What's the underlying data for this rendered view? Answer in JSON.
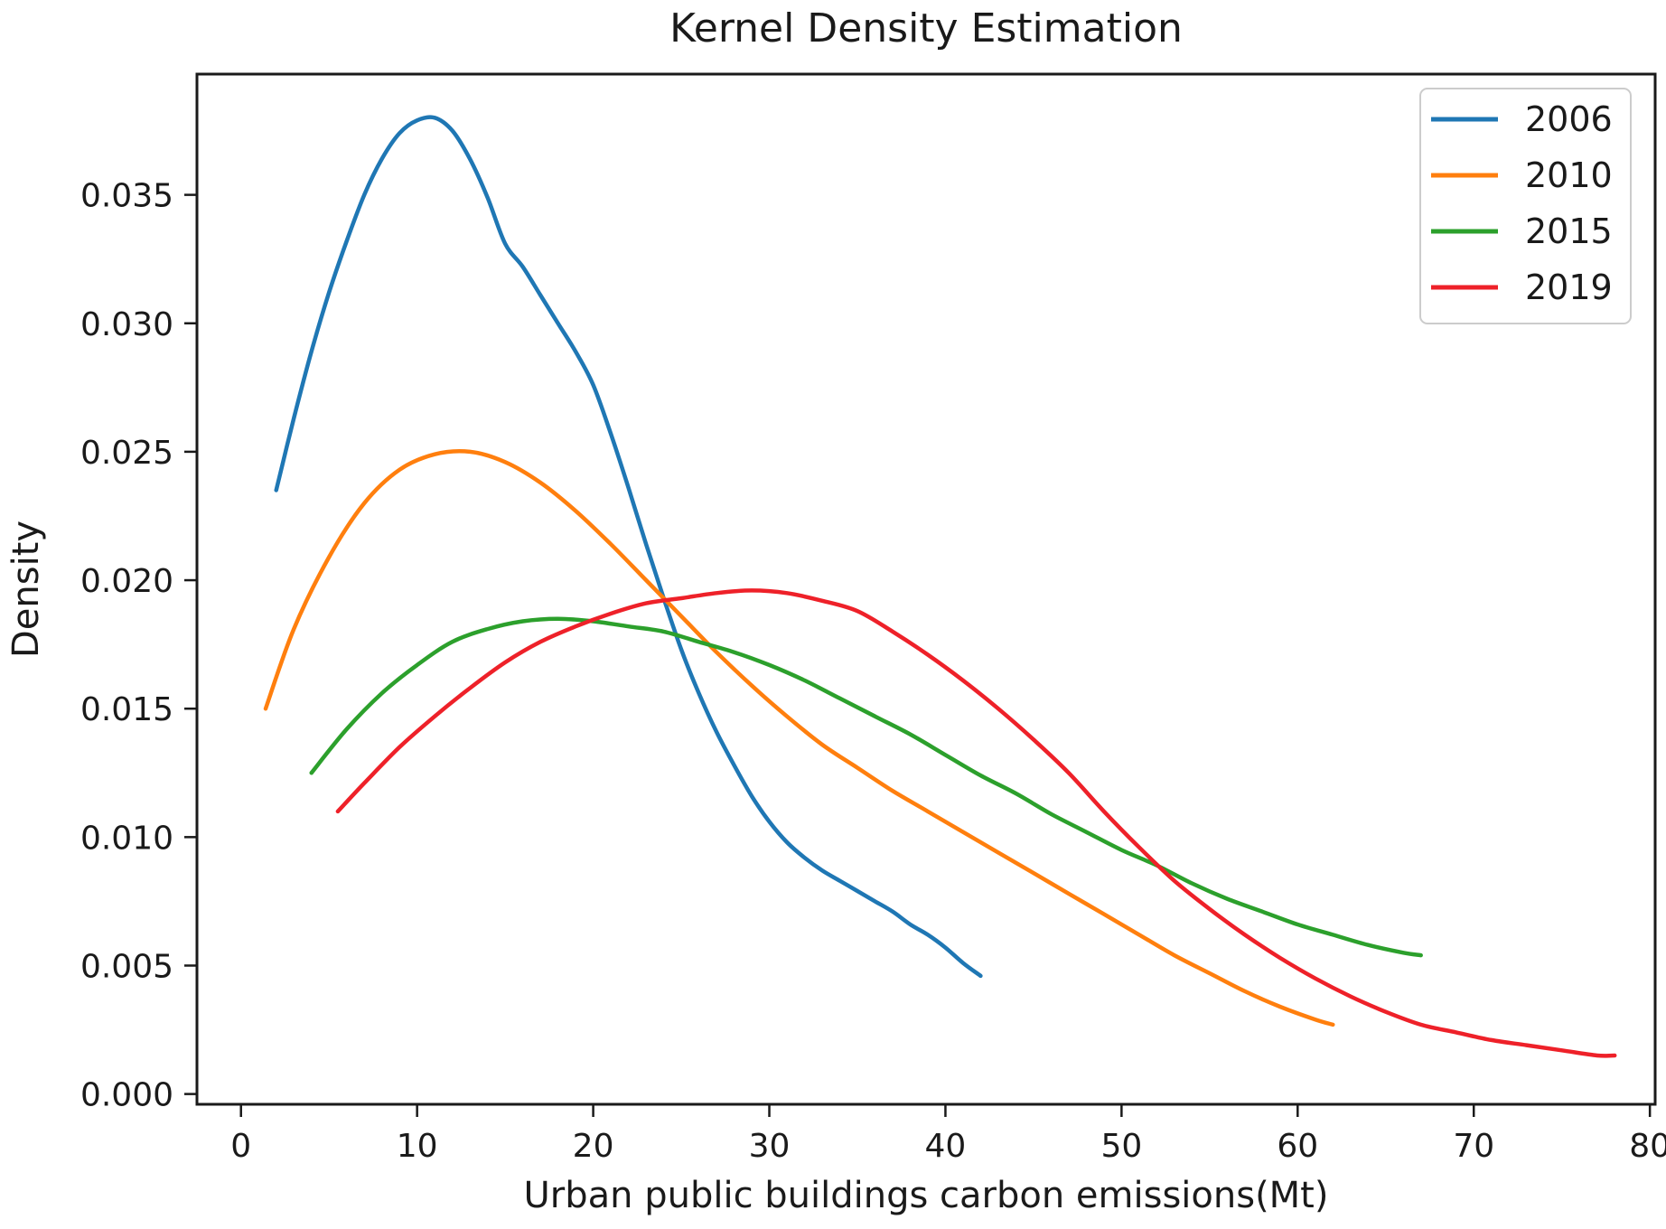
{
  "figure": {
    "title": "Kernel Density Estimation"
  },
  "x_axis": {
    "label": "Urban public buildings carbon emissions(Mt)",
    "tick_labels": [
      "0",
      "10",
      "20",
      "30",
      "40",
      "50",
      "60",
      "70",
      "80"
    ],
    "tick_values": [
      0,
      10,
      20,
      30,
      40,
      50,
      60,
      70,
      80
    ]
  },
  "y_axis": {
    "label": "Density",
    "tick_labels": [
      "0.000",
      "0.005",
      "0.010",
      "0.015",
      "0.020",
      "0.025",
      "0.030",
      "0.035"
    ],
    "tick_values": [
      0.0,
      0.005,
      0.01,
      0.015,
      0.02,
      0.025,
      0.03,
      0.035
    ]
  },
  "legend": {
    "position": "upper right",
    "entries": [
      {
        "label": "2006",
        "color": "#1f77b4"
      },
      {
        "label": "2010",
        "color": "#ff7f0e"
      },
      {
        "label": "2015",
        "color": "#2ca02c"
      },
      {
        "label": "2019",
        "color": "#ee2129"
      }
    ]
  },
  "chart_data": {
    "type": "line",
    "title": "Kernel Density Estimation",
    "xlabel": "Urban public buildings carbon emissions(Mt)",
    "ylabel": "Density",
    "xlim": [
      -2.5,
      80.3
    ],
    "ylim": [
      -0.0004,
      0.0397
    ],
    "grid": false,
    "legend_position": "upper right",
    "series": [
      {
        "name": "2006",
        "color": "#1f77b4",
        "points": [
          [
            2,
            0.0235
          ],
          [
            3,
            0.0263
          ],
          [
            4,
            0.0289
          ],
          [
            5,
            0.0312
          ],
          [
            6,
            0.0332
          ],
          [
            7,
            0.035
          ],
          [
            8,
            0.0364
          ],
          [
            9,
            0.0374
          ],
          [
            10,
            0.0379
          ],
          [
            11,
            0.038
          ],
          [
            12,
            0.0375
          ],
          [
            13,
            0.0364
          ],
          [
            14,
            0.0349
          ],
          [
            15,
            0.0331
          ],
          [
            16,
            0.0322
          ],
          [
            17,
            0.0311
          ],
          [
            18,
            0.03
          ],
          [
            19,
            0.0289
          ],
          [
            20,
            0.0276
          ],
          [
            21,
            0.0257
          ],
          [
            22,
            0.0236
          ],
          [
            23,
            0.0214
          ],
          [
            24,
            0.0193
          ],
          [
            25,
            0.0173
          ],
          [
            26,
            0.0156
          ],
          [
            27,
            0.0141
          ],
          [
            28,
            0.0128
          ],
          [
            29,
            0.0116
          ],
          [
            30,
            0.0106
          ],
          [
            31,
            0.0098
          ],
          [
            32,
            0.0092
          ],
          [
            33,
            0.0087
          ],
          [
            34,
            0.0083
          ],
          [
            35,
            0.0079
          ],
          [
            36,
            0.0075
          ],
          [
            37,
            0.0071
          ],
          [
            38,
            0.0066
          ],
          [
            39,
            0.0062
          ],
          [
            40,
            0.0057
          ],
          [
            41,
            0.0051
          ],
          [
            42,
            0.0046
          ]
        ]
      },
      {
        "name": "2010",
        "color": "#ff7f0e",
        "points": [
          [
            1.4,
            0.015
          ],
          [
            3,
            0.0181
          ],
          [
            5,
            0.0209
          ],
          [
            7,
            0.023
          ],
          [
            9,
            0.0243
          ],
          [
            11,
            0.0249
          ],
          [
            13,
            0.025
          ],
          [
            15,
            0.0246
          ],
          [
            17,
            0.0238
          ],
          [
            19,
            0.0227
          ],
          [
            21,
            0.0214
          ],
          [
            23,
            0.02
          ],
          [
            25,
            0.0186
          ],
          [
            27,
            0.0172
          ],
          [
            29,
            0.0159
          ],
          [
            31,
            0.0147
          ],
          [
            33,
            0.0136
          ],
          [
            35,
            0.0127
          ],
          [
            37,
            0.0118
          ],
          [
            39,
            0.011
          ],
          [
            41,
            0.0102
          ],
          [
            43,
            0.0094
          ],
          [
            45,
            0.0086
          ],
          [
            47,
            0.0078
          ],
          [
            49,
            0.007
          ],
          [
            51,
            0.0062
          ],
          [
            53,
            0.0054
          ],
          [
            55,
            0.0047
          ],
          [
            57,
            0.004
          ],
          [
            59,
            0.0034
          ],
          [
            61,
            0.0029
          ],
          [
            62,
            0.0027
          ]
        ]
      },
      {
        "name": "2015",
        "color": "#2ca02c",
        "points": [
          [
            4,
            0.0125
          ],
          [
            6,
            0.0142
          ],
          [
            8,
            0.0156
          ],
          [
            10,
            0.0167
          ],
          [
            12,
            0.0176
          ],
          [
            14,
            0.0181
          ],
          [
            16,
            0.0184
          ],
          [
            18,
            0.0185
          ],
          [
            20,
            0.0184
          ],
          [
            22,
            0.0182
          ],
          [
            24,
            0.018
          ],
          [
            26,
            0.0176
          ],
          [
            28,
            0.0172
          ],
          [
            30,
            0.0167
          ],
          [
            32,
            0.0161
          ],
          [
            34,
            0.0154
          ],
          [
            36,
            0.0147
          ],
          [
            38,
            0.014
          ],
          [
            40,
            0.0132
          ],
          [
            42,
            0.0124
          ],
          [
            44,
            0.0117
          ],
          [
            46,
            0.0109
          ],
          [
            48,
            0.0102
          ],
          [
            50,
            0.0095
          ],
          [
            52,
            0.0089
          ],
          [
            54,
            0.0082
          ],
          [
            56,
            0.0076
          ],
          [
            58,
            0.0071
          ],
          [
            60,
            0.0066
          ],
          [
            62,
            0.0062
          ],
          [
            64,
            0.0058
          ],
          [
            66,
            0.0055
          ],
          [
            67,
            0.0054
          ]
        ]
      },
      {
        "name": "2019",
        "color": "#ee2129",
        "points": [
          [
            5.5,
            0.011
          ],
          [
            7,
            0.0121
          ],
          [
            9,
            0.0135
          ],
          [
            11,
            0.0147
          ],
          [
            13,
            0.0158
          ],
          [
            15,
            0.0168
          ],
          [
            17,
            0.0176
          ],
          [
            19,
            0.0182
          ],
          [
            21,
            0.0187
          ],
          [
            23,
            0.0191
          ],
          [
            25,
            0.0193
          ],
          [
            27,
            0.0195
          ],
          [
            29,
            0.0196
          ],
          [
            31,
            0.0195
          ],
          [
            33,
            0.0192
          ],
          [
            35,
            0.0188
          ],
          [
            37,
            0.018
          ],
          [
            39,
            0.0171
          ],
          [
            41,
            0.0161
          ],
          [
            43,
            0.015
          ],
          [
            45,
            0.0138
          ],
          [
            47,
            0.0125
          ],
          [
            49,
            0.011
          ],
          [
            51,
            0.0096
          ],
          [
            53,
            0.0083
          ],
          [
            55,
            0.0072
          ],
          [
            57,
            0.0062
          ],
          [
            59,
            0.0053
          ],
          [
            61,
            0.0045
          ],
          [
            63,
            0.0038
          ],
          [
            65,
            0.0032
          ],
          [
            67,
            0.0027
          ],
          [
            69,
            0.0024
          ],
          [
            71,
            0.0021
          ],
          [
            73,
            0.0019
          ],
          [
            75,
            0.0017
          ],
          [
            77,
            0.0015
          ],
          [
            78,
            0.0015
          ]
        ]
      }
    ]
  }
}
